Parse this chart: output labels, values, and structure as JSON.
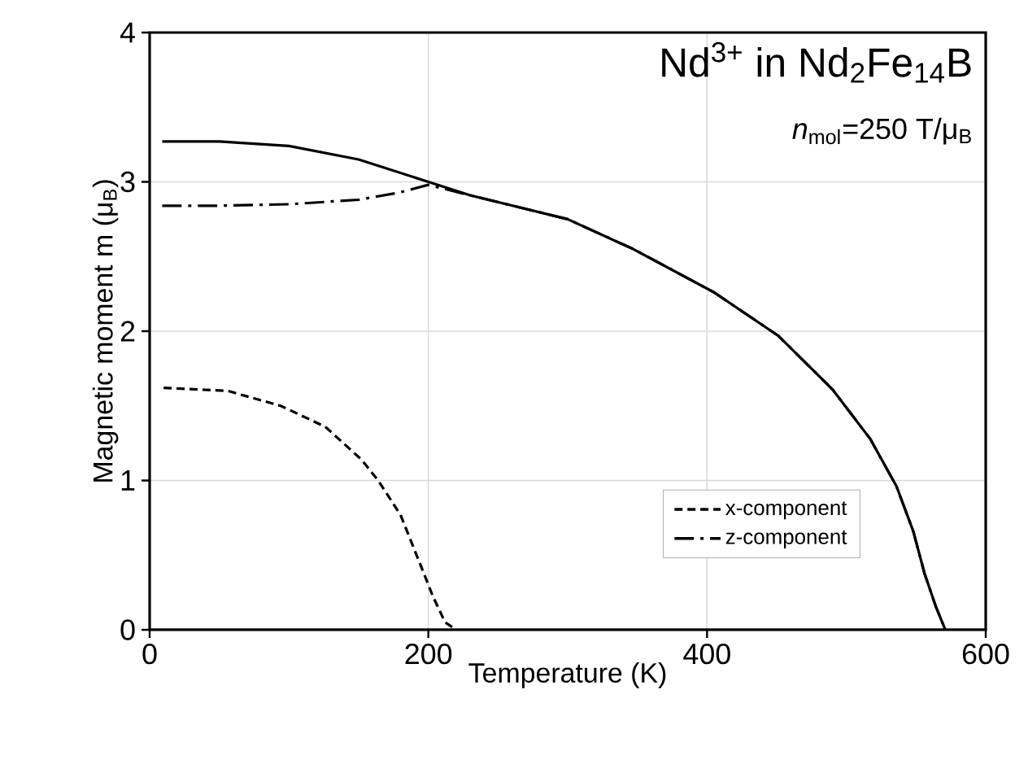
{
  "chart_data": {
    "type": "line",
    "xlabel": "Temperature (K)",
    "ylabel": "Magnetic moment m (μ$_{B}$)",
    "annotations": [
      "Nd$^{3+}$ in Nd$_{2}$Fe$_{14}$B",
      "*n*$_{mol}$=250 T/μ$_{B}$"
    ],
    "xlim": [
      0,
      600
    ],
    "xticks": [
      0,
      200,
      400,
      600
    ],
    "ylim": [
      0,
      4
    ],
    "yticks": [
      0,
      1,
      2,
      3,
      4
    ],
    "grid": true,
    "legend": "bottom right",
    "marker": "none",
    "series": [
      {
        "color": "#000000",
        "line_style": "solid",
        "x": [
          9,
          50,
          100,
          150,
          200,
          230,
          300,
          347,
          405,
          451,
          490,
          517,
          536,
          548,
          556,
          564,
          571
        ],
        "values": [
          3.27,
          3.27,
          3.24,
          3.15,
          3.0,
          2.91,
          2.75,
          2.55,
          2.26,
          1.97,
          1.61,
          1.28,
          0.96,
          0.66,
          0.38,
          0.16,
          0.0
        ]
      },
      {
        "name": "x-component",
        "color": "#000000",
        "line_style": "dashed",
        "x": [
          10,
          56,
          94,
          126,
          152,
          164,
          180,
          192,
          203,
          212,
          220
        ],
        "values": [
          1.62,
          1.6,
          1.5,
          1.36,
          1.14,
          1.0,
          0.77,
          0.49,
          0.23,
          0.05,
          0.0
        ]
      },
      {
        "name": "z-component",
        "color": "#000000",
        "line_style": "dashdot",
        "x": [
          9,
          50,
          100,
          150,
          180,
          200,
          230,
          300,
          347,
          405,
          451,
          490,
          517,
          536,
          548,
          556,
          564,
          571
        ],
        "values": [
          2.84,
          2.84,
          2.85,
          2.88,
          2.93,
          2.98,
          2.91,
          2.75,
          2.55,
          2.26,
          1.97,
          1.61,
          1.28,
          0.96,
          0.66,
          0.38,
          0.16,
          0.0
        ]
      }
    ]
  }
}
